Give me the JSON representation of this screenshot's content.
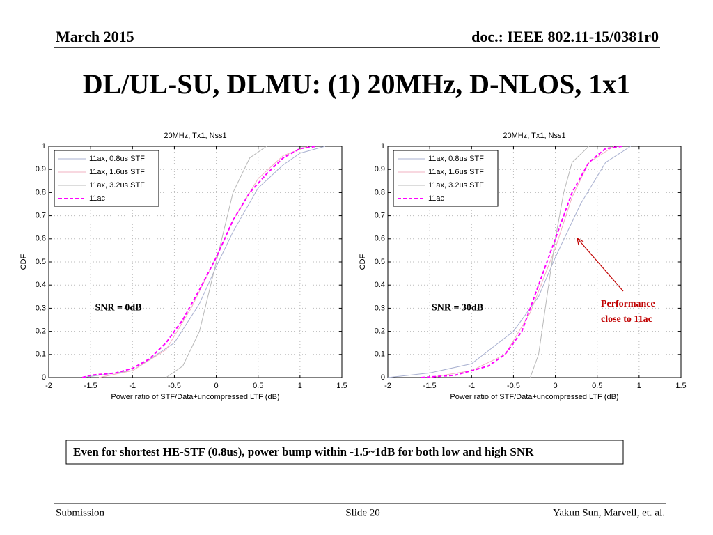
{
  "header": {
    "date": "March 2015",
    "doc": "doc.: IEEE 802.11-15/0381r0"
  },
  "title": "DL/UL-SU, DLMU: (1) 20MHz, D-NLOS, 1x1",
  "chart_data": [
    {
      "type": "line",
      "title": "20MHz, Tx1, Nss1",
      "xlabel": "Power ratio of STF/Data+uncompressed LTF (dB)",
      "ylabel": "CDF",
      "xlim": [
        -2,
        1.5
      ],
      "ylim": [
        0,
        1
      ],
      "xticks": [
        -2,
        -1.5,
        -1,
        -0.5,
        0,
        0.5,
        1,
        1.5
      ],
      "yticks": [
        0,
        0.1,
        0.2,
        0.3,
        0.4,
        0.5,
        0.6,
        0.7,
        0.8,
        0.9,
        1
      ],
      "grid": true,
      "legend": "northwest",
      "annotation": "SNR = 0dB",
      "series": [
        {
          "name": "11ax, 0.8us STF",
          "color": "#a8b0d0",
          "line_style": "solid",
          "x": [
            -1.6,
            -1.0,
            -0.5,
            -0.2,
            0,
            0.2,
            0.5,
            0.8,
            1.0,
            1.3
          ],
          "values": [
            0,
            0.03,
            0.15,
            0.32,
            0.48,
            0.63,
            0.82,
            0.92,
            0.97,
            1
          ]
        },
        {
          "name": "11ax, 1.6us STF",
          "color": "#f0b0c0",
          "line_style": "solid",
          "x": [
            -1.4,
            -1.0,
            -0.6,
            -0.3,
            0,
            0.2,
            0.5,
            0.8,
            1.1
          ],
          "values": [
            0,
            0.03,
            0.12,
            0.3,
            0.52,
            0.68,
            0.86,
            0.96,
            1
          ]
        },
        {
          "name": "11ax, 3.2us STF",
          "color": "#b8b8b8",
          "line_style": "solid",
          "x": [
            -0.6,
            -0.4,
            -0.2,
            0,
            0.1,
            0.2,
            0.4,
            0.6
          ],
          "values": [
            0,
            0.05,
            0.2,
            0.5,
            0.65,
            0.8,
            0.95,
            1
          ]
        },
        {
          "name": "11ac",
          "color": "#ff00ff",
          "line_style": "dashed",
          "x": [
            -1.6,
            -1.5,
            -1.2,
            -1.0,
            -0.8,
            -0.6,
            -0.4,
            -0.2,
            0,
            0.2,
            0.4,
            0.6,
            0.8,
            1.0,
            1.2
          ],
          "values": [
            0,
            0.01,
            0.02,
            0.04,
            0.08,
            0.15,
            0.25,
            0.38,
            0.52,
            0.68,
            0.8,
            0.88,
            0.95,
            0.99,
            1
          ]
        }
      ]
    },
    {
      "type": "line",
      "title": "20MHz, Tx1, Nss1",
      "xlabel": "Power ratio of STF/Data+uncompressed LTF (dB)",
      "ylabel": "CDF",
      "xlim": [
        -2,
        1.5
      ],
      "ylim": [
        0,
        1
      ],
      "xticks": [
        -2,
        -1.5,
        -1,
        -0.5,
        0,
        0.5,
        1,
        1.5
      ],
      "yticks": [
        0,
        0.1,
        0.2,
        0.3,
        0.4,
        0.5,
        0.6,
        0.7,
        0.8,
        0.9,
        1
      ],
      "grid": true,
      "legend": "northwest",
      "annotation": "SNR = 30dB",
      "callout_lines": [
        "Performance",
        "close to 11ac"
      ],
      "series": [
        {
          "name": "11ax, 0.8us STF",
          "color": "#a8b0d0",
          "line_style": "solid",
          "x": [
            -2,
            -1.5,
            -1.0,
            -0.5,
            -0.2,
            0,
            0.3,
            0.6,
            0.9
          ],
          "values": [
            0,
            0.02,
            0.06,
            0.2,
            0.35,
            0.52,
            0.75,
            0.93,
            1
          ]
        },
        {
          "name": "11ax, 1.6us STF",
          "color": "#f0b0c0",
          "line_style": "solid",
          "x": [
            -1.5,
            -1.0,
            -0.6,
            -0.3,
            0,
            0.2,
            0.4,
            0.7
          ],
          "values": [
            0,
            0.03,
            0.1,
            0.28,
            0.56,
            0.78,
            0.93,
            1
          ]
        },
        {
          "name": "11ax, 3.2us STF",
          "color": "#b8b8b8",
          "line_style": "solid",
          "x": [
            -0.3,
            -0.2,
            -0.1,
            0,
            0.1,
            0.2,
            0.4
          ],
          "values": [
            0,
            0.1,
            0.35,
            0.6,
            0.8,
            0.93,
            1
          ]
        },
        {
          "name": "11ac",
          "color": "#ff00ff",
          "line_style": "dashed",
          "x": [
            -1.6,
            -1.2,
            -0.8,
            -0.6,
            -0.4,
            -0.2,
            0,
            0.2,
            0.4,
            0.6,
            0.8
          ],
          "values": [
            0,
            0.01,
            0.05,
            0.1,
            0.2,
            0.4,
            0.6,
            0.8,
            0.93,
            0.99,
            1
          ]
        }
      ]
    }
  ],
  "note": "Even for shortest HE-STF (0.8us), power bump within -1.5~1dB for both low and high SNR",
  "footer": {
    "left": "Submission",
    "center": "Slide 20",
    "right": "Yakun Sun,  Marvell, et. al."
  }
}
